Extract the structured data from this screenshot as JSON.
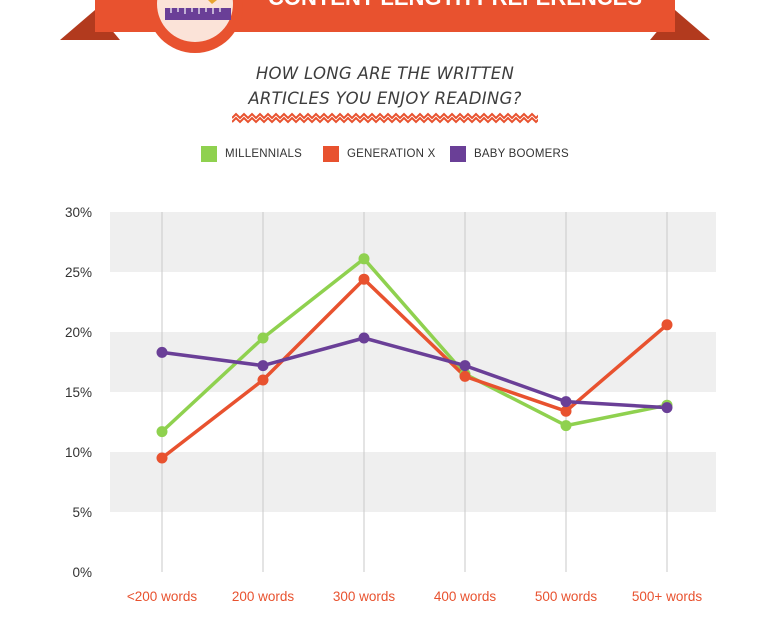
{
  "header": {
    "banner_title": "CONTENT LENGTH PREFERENCES",
    "banner_color": "#e8522f",
    "banner_dark": "#b23a1e",
    "icon": "ruler-pencil-icon"
  },
  "chart_data": {
    "type": "line",
    "title_lines": [
      "HOW LONG ARE THE WRITTEN",
      "ARTICLES YOU ENJOY READING?"
    ],
    "categories": [
      "<200 words",
      "200 words",
      "300 words",
      "400 words",
      "500 words",
      "500+ words"
    ],
    "y_ticks": [
      "0%",
      "5%",
      "10%",
      "15%",
      "20%",
      "25%",
      "30%"
    ],
    "ylim": [
      0,
      30
    ],
    "legend_position": "top-center",
    "series": [
      {
        "name": "MILLENNIALS",
        "color": "#8fd14f",
        "values": [
          11.7,
          19.5,
          26.1,
          16.5,
          12.2,
          13.9
        ]
      },
      {
        "name": "GENERATION X",
        "color": "#e8522f",
        "values": [
          9.5,
          16.0,
          24.4,
          16.3,
          13.4,
          20.6
        ]
      },
      {
        "name": "BABY BOOMERS",
        "color": "#6a3f97",
        "values": [
          18.3,
          17.2,
          19.5,
          17.2,
          14.2,
          13.7
        ]
      }
    ],
    "colors": {
      "band": "#efefef",
      "grid": "#c8c8c8",
      "axis_text": "#333333",
      "category_text": "#e8522f"
    }
  }
}
